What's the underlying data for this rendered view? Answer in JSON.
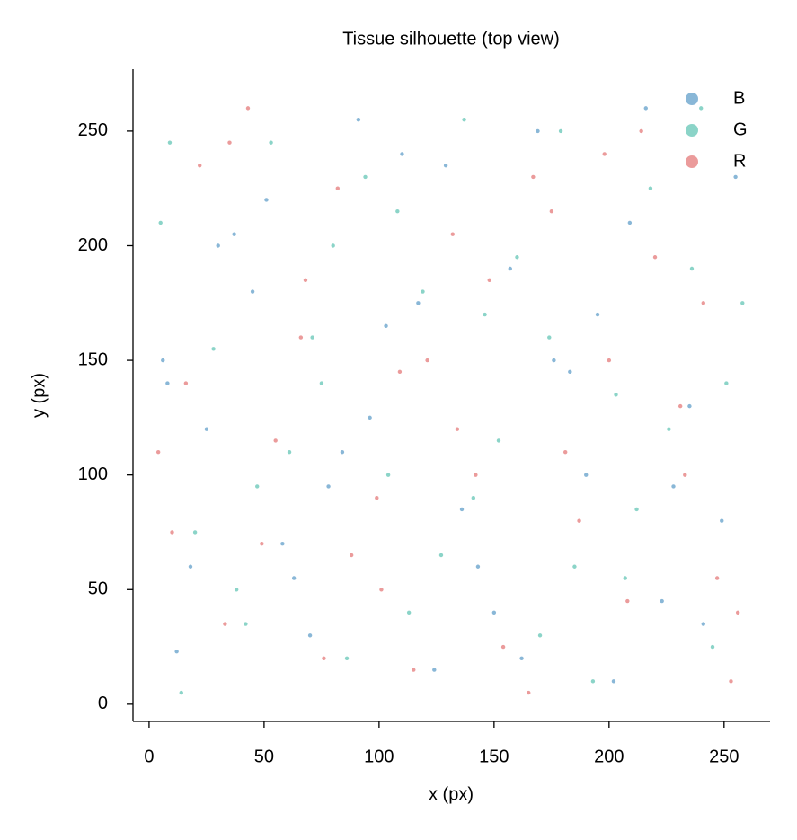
{
  "chart_data": {
    "type": "scatter",
    "title": "Tissue silhouette (top view)",
    "x_label": "x (px)",
    "y_label": "y (px)",
    "xlim": [
      -7,
      270
    ],
    "ylim": [
      -7.5,
      277
    ],
    "xticks": [
      0,
      50,
      100,
      150,
      200,
      250
    ],
    "yticks": [
      0,
      50,
      100,
      150,
      200,
      250
    ],
    "legend": "upper right",
    "series": [
      {
        "name": "B",
        "color": "#4a90c2",
        "x": [
          12,
          45,
          78,
          110,
          143,
          176,
          209,
          241,
          25,
          58,
          91,
          124,
          157,
          190,
          223,
          255,
          8,
          37,
          70,
          103,
          136,
          169,
          202,
          235,
          18,
          51,
          84,
          117,
          150,
          183,
          216,
          249,
          30,
          63,
          96,
          129,
          162,
          195,
          228,
          6
        ],
        "values": [
          23,
          180,
          95,
          240,
          60,
          150,
          210,
          35,
          120,
          70,
          255,
          15,
          190,
          100,
          45,
          230,
          140,
          205,
          30,
          165,
          85,
          250,
          10,
          130,
          60,
          220,
          110,
          175,
          40,
          145,
          260,
          80,
          200,
          55,
          125,
          235,
          20,
          170,
          95,
          150
        ]
      },
      {
        "name": "G",
        "color": "#4dbdab",
        "x": [
          5,
          38,
          71,
          104,
          137,
          170,
          203,
          236,
          20,
          53,
          86,
          119,
          152,
          185,
          218,
          251,
          14,
          47,
          80,
          113,
          146,
          179,
          212,
          245,
          28,
          61,
          94,
          127,
          160,
          193,
          226,
          258,
          9,
          42,
          75,
          108,
          141,
          174,
          207,
          240
        ],
        "values": [
          210,
          50,
          160,
          100,
          255,
          30,
          135,
          190,
          75,
          245,
          20,
          180,
          115,
          60,
          225,
          140,
          5,
          95,
          200,
          40,
          170,
          250,
          85,
          25,
          155,
          110,
          230,
          65,
          195,
          10,
          120,
          175,
          245,
          35,
          140,
          215,
          90,
          160,
          55,
          260
        ]
      },
      {
        "name": "R",
        "color": "#e06666",
        "x": [
          16,
          49,
          82,
          115,
          148,
          181,
          214,
          247,
          33,
          66,
          99,
          132,
          165,
          198,
          231,
          10,
          43,
          76,
          109,
          142,
          175,
          208,
          241,
          22,
          55,
          88,
          121,
          154,
          187,
          220,
          253,
          4,
          35,
          68,
          101,
          134,
          167,
          200,
          233,
          256
        ],
        "values": [
          140,
          70,
          225,
          15,
          185,
          110,
          250,
          55,
          35,
          160,
          90,
          205,
          5,
          240,
          130,
          75,
          260,
          20,
          145,
          100,
          215,
          45,
          175,
          235,
          115,
          65,
          150,
          25,
          80,
          195,
          10,
          110,
          245,
          185,
          50,
          120,
          230,
          150,
          100,
          40
        ]
      }
    ]
  }
}
